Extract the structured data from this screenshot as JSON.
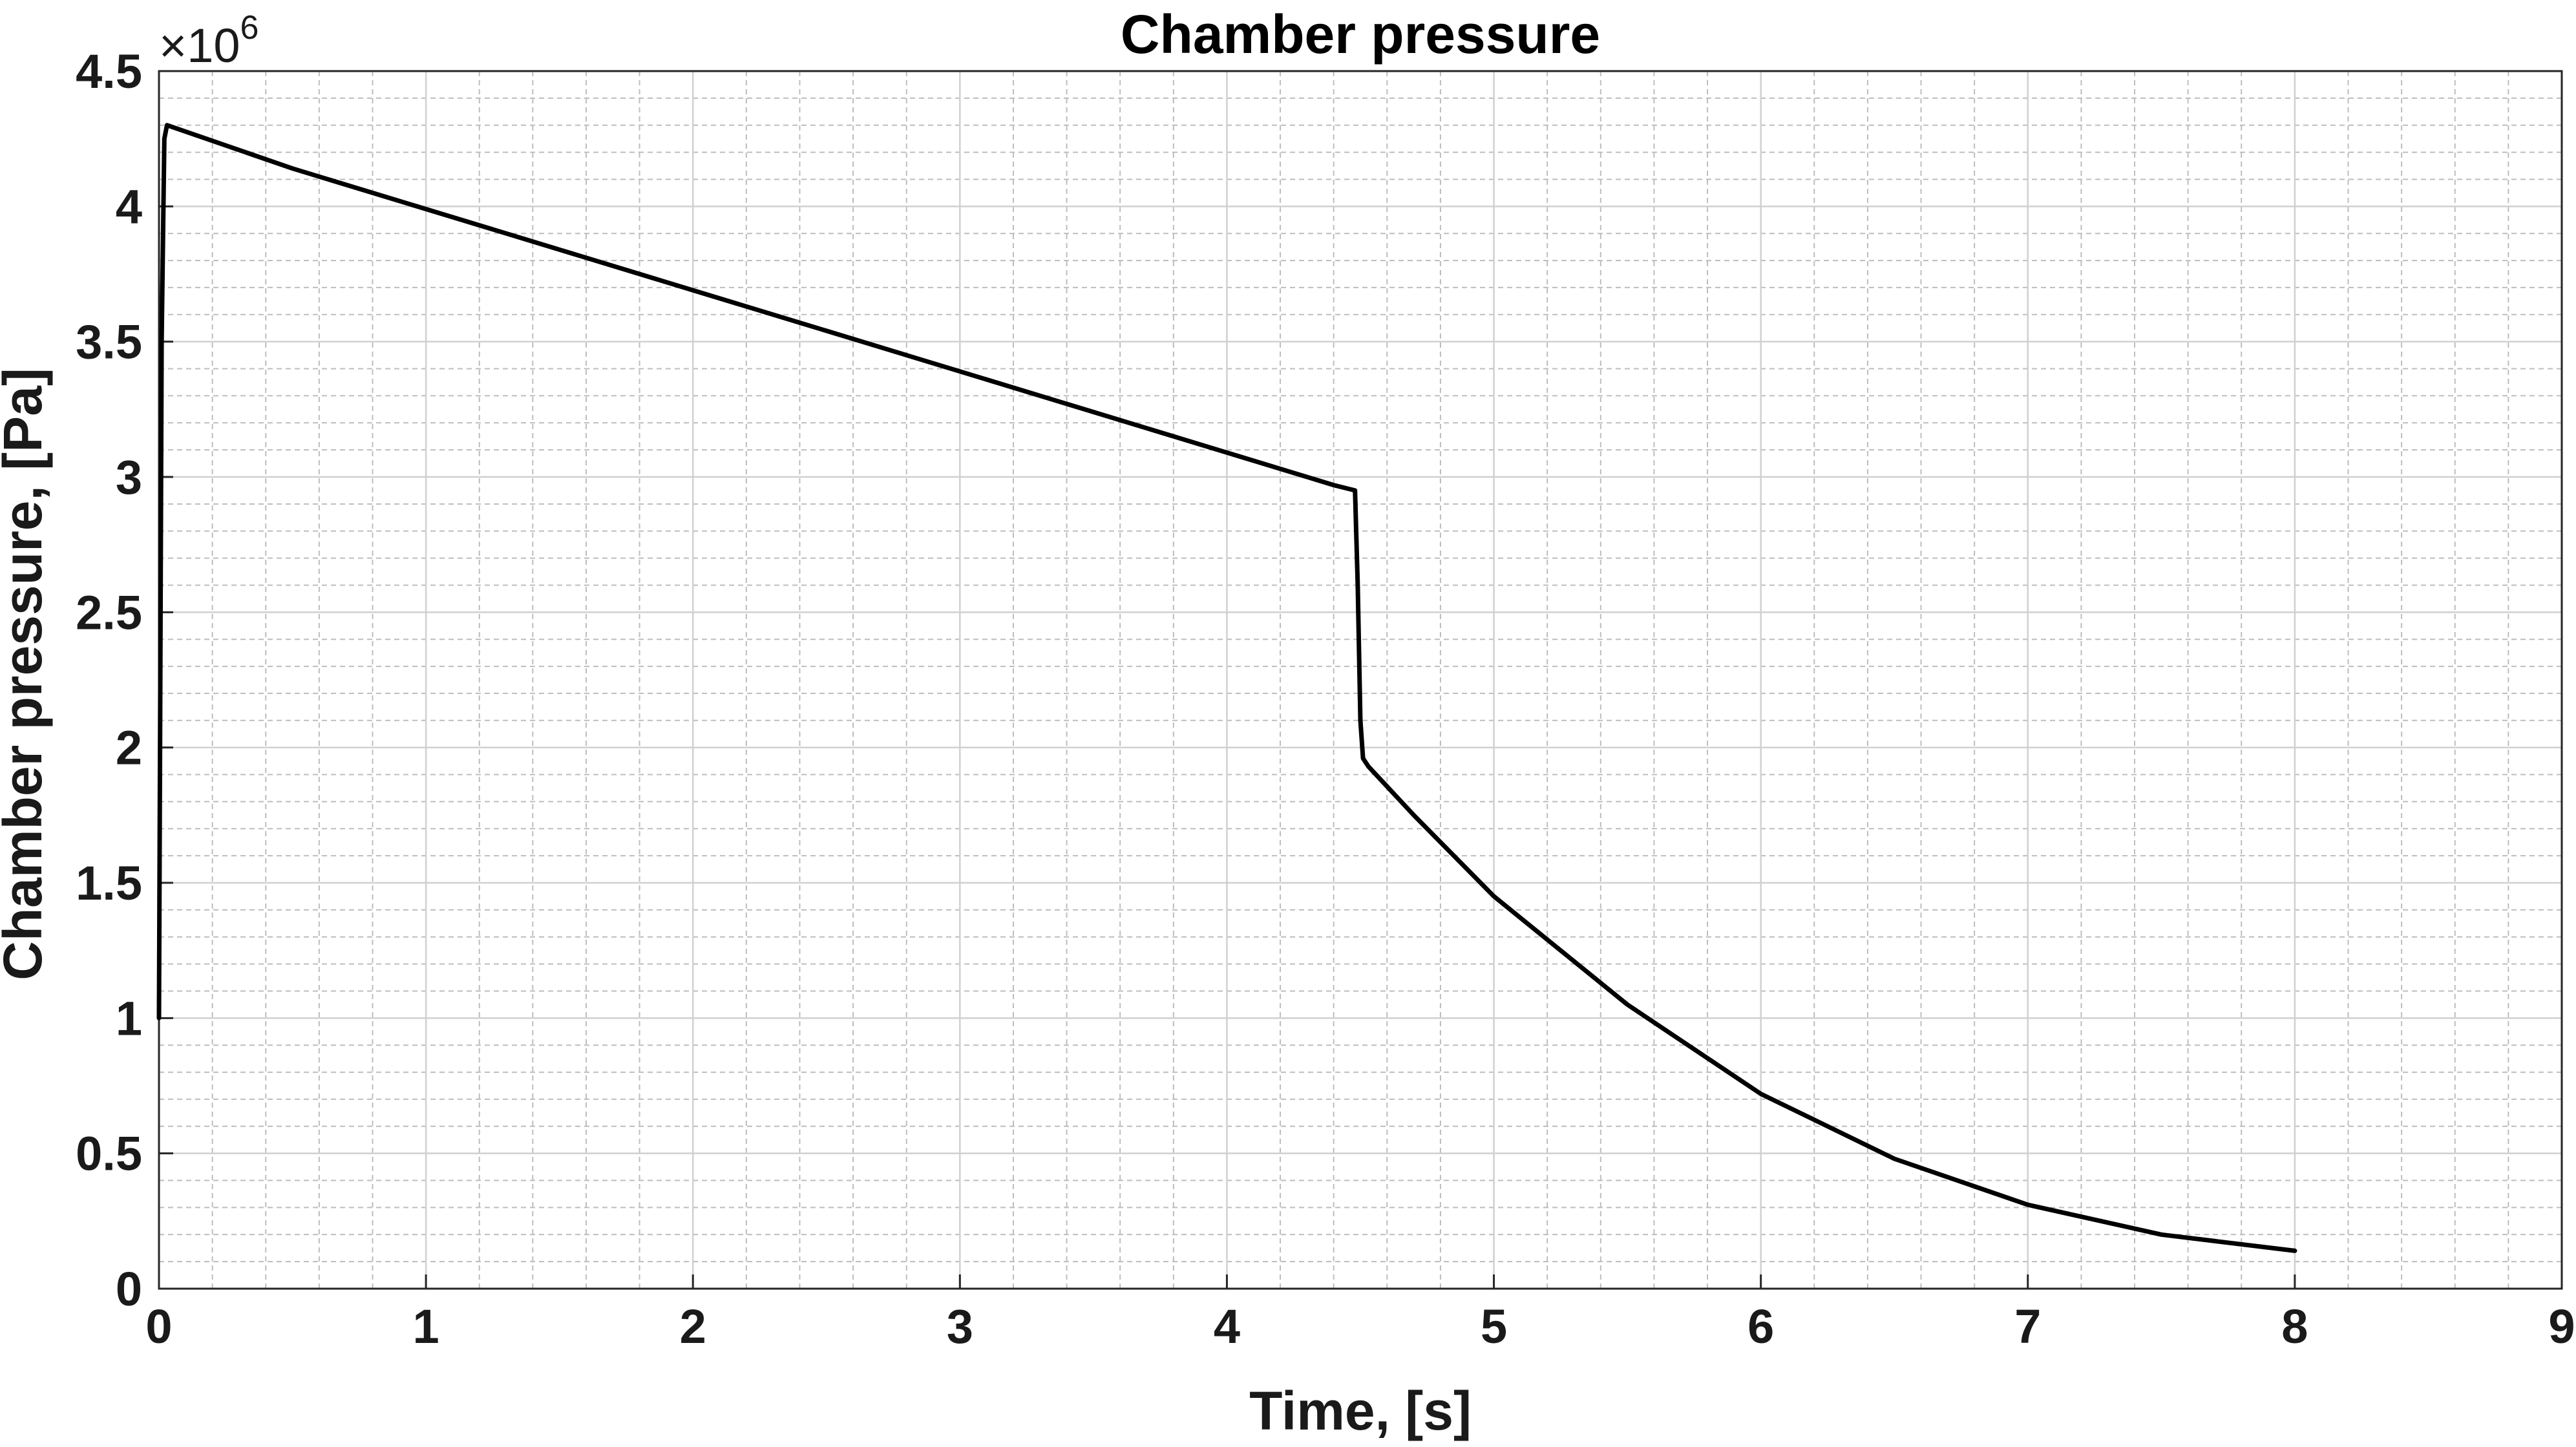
{
  "chart_data": {
    "type": "line",
    "title": "Chamber pressure",
    "xlabel": "Time, [s]",
    "ylabel": "Chamber pressure, [Pa]",
    "y_multiplier_base": "×10",
    "y_multiplier_exponent": "6",
    "xlim": [
      0,
      9
    ],
    "ylim": [
      0,
      4.5
    ],
    "x_ticks": [
      "0",
      "1",
      "2",
      "3",
      "4",
      "5",
      "6",
      "7",
      "8",
      "9"
    ],
    "y_ticks": [
      "0",
      "0.5",
      "1",
      "1.5",
      "2",
      "2.5",
      "3",
      "3.5",
      "4",
      "4.5"
    ],
    "grid": true,
    "minor_grid": true,
    "y_scale_note": "y values in units of 10^6 Pa",
    "series": [
      {
        "color": "#000000",
        "x": [
          0.0,
          0.01,
          0.02,
          0.03,
          0.5,
          1.0,
          1.5,
          2.0,
          2.5,
          3.0,
          3.5,
          4.0,
          4.4,
          4.48,
          4.49,
          4.5,
          4.51,
          4.53,
          4.7,
          5.0,
          5.5,
          6.0,
          6.5,
          7.0,
          7.5,
          8.0
        ],
        "y": [
          1.0,
          3.5,
          4.25,
          4.3,
          4.14,
          3.99,
          3.84,
          3.69,
          3.54,
          3.39,
          3.24,
          3.09,
          2.97,
          2.95,
          2.6,
          2.1,
          1.96,
          1.93,
          1.75,
          1.45,
          1.05,
          0.72,
          0.48,
          0.31,
          0.2,
          0.14
        ]
      }
    ],
    "colors": {
      "major_grid": "#d0d0d0",
      "minor_grid": "#bdbdbd",
      "axes": "#262626",
      "line": "#000000"
    }
  }
}
